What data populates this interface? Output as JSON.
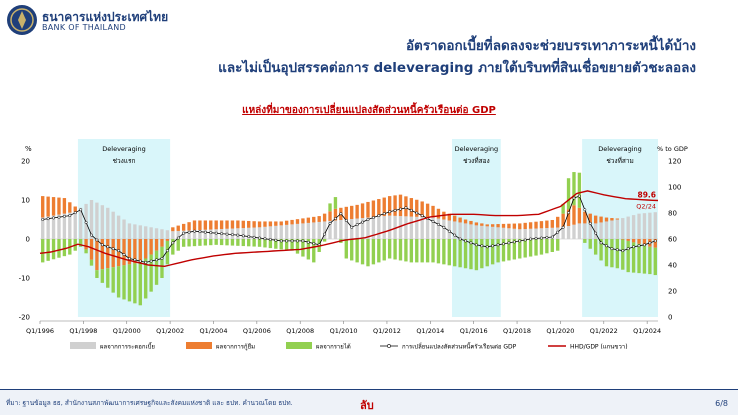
{
  "header": {
    "bank_name_th": "ธนาคารแห่งประเทศไทย",
    "bank_name_en": "BANK OF THAILAND",
    "title_line1": "อัตราดอกเบี้ยที่ลดลงจะช่วยบรรเทาภาระหนี้ได้บ้าง",
    "title_line2": "และไม่เป็นอุปสรรคต่อการ deleveraging ภายใต้บริบทที่สินเชื่อขยายตัวชะลอลง"
  },
  "chart_data": {
    "type": "bar",
    "title": "แหล่งที่มาของการเปลี่ยนแปลงสัดส่วนหนี้ครัวเรือนต่อ GDP",
    "ylabel_left": "%",
    "ylabel_right": "% to GDP",
    "ylim_left": [
      -20,
      20
    ],
    "ylim_right": [
      0,
      120
    ],
    "left_ticks": [
      "20",
      "10",
      "0",
      "-10",
      "-20"
    ],
    "right_ticks": [
      "120",
      "100",
      "80",
      "60",
      "40",
      "20",
      "0"
    ],
    "x_tick_labels": [
      "Q1/1996",
      "Q1/1998",
      "Q1/2000",
      "Q1/2002",
      "Q1/2004",
      "Q1/2006",
      "Q1/2008",
      "Q1/2010",
      "Q1/2012",
      "Q1/2014",
      "Q1/2016",
      "Q1/2018",
      "Q1/2020",
      "Q1/2022",
      "Q1/2024"
    ],
    "x_range": [
      1996.0,
      2024.5
    ],
    "shaded_periods": [
      {
        "start": 1997.75,
        "end": 2002.0,
        "label_line1": "Deleveraging",
        "label_line2": "ช่วงแรก"
      },
      {
        "start": 2015.0,
        "end": 2017.25,
        "label_line1": "Deleveraging",
        "label_line2": "ช่วงที่สอง"
      },
      {
        "start": 2021.0,
        "end": 2024.5,
        "label_line1": "Deleveraging",
        "label_line2": "ช่วงที่สาม"
      }
    ],
    "series_names": {
      "interest": "ผลจากการระดอกเบี้ย",
      "borrowing": "ผลจากการกู้ยืม",
      "income": "ผลจากรายได้",
      "change": "การเปลี่ยนแปลงสัดส่วนหนี้ครัวเรือนต่อ GDP",
      "hhd": "HHD/GDP (แกนขวา)"
    },
    "colors": {
      "interest": "#d0d0d0",
      "borrowing": "#ed7d31",
      "income": "#92d050",
      "change": "#000000",
      "hhd": "#c00000",
      "shade": "#d9f6fa"
    },
    "annotations": {
      "hhd_last": "89.6",
      "hhd_last_period": "Q2/24"
    },
    "interest_points": [
      [
        1996.0,
        5.5
      ],
      [
        1997.5,
        7
      ],
      [
        1998.25,
        10
      ],
      [
        1999.0,
        8
      ],
      [
        2000.0,
        4
      ],
      [
        2001.0,
        3
      ],
      [
        2002.0,
        2
      ],
      [
        2004.0,
        2.5
      ],
      [
        2006.0,
        3
      ],
      [
        2008.0,
        4
      ],
      [
        2010.0,
        5
      ],
      [
        2012.0,
        6
      ],
      [
        2014.0,
        5.5
      ],
      [
        2016.0,
        3.5
      ],
      [
        2018.0,
        2.5
      ],
      [
        2020.0,
        3
      ],
      [
        2020.75,
        4
      ],
      [
        2021.5,
        4
      ],
      [
        2022.5,
        5
      ],
      [
        2023.5,
        6.5
      ],
      [
        2024.5,
        7
      ]
    ],
    "borrowing_points": [
      [
        1996.0,
        5.5
      ],
      [
        1997.0,
        4
      ],
      [
        1997.75,
        0
      ],
      [
        1998.5,
        -8
      ],
      [
        1999.5,
        -7
      ],
      [
        2000.5,
        -6
      ],
      [
        2001.5,
        -2
      ],
      [
        2002.0,
        1
      ],
      [
        2003.0,
        2.5
      ],
      [
        2005.0,
        2
      ],
      [
        2007.0,
        1
      ],
      [
        2008.75,
        1.5
      ],
      [
        2009.5,
        3
      ],
      [
        2010.5,
        3.5
      ],
      [
        2011.5,
        4.5
      ],
      [
        2012.5,
        5.5
      ],
      [
        2013.5,
        4
      ],
      [
        2014.5,
        2
      ],
      [
        2015.5,
        1
      ],
      [
        2016.5,
        0.5
      ],
      [
        2018.0,
        1.5
      ],
      [
        2019.5,
        2
      ],
      [
        2020.5,
        5
      ],
      [
        2021.0,
        3
      ],
      [
        2022.0,
        1
      ],
      [
        2023.0,
        -0.5
      ],
      [
        2024.0,
        -2
      ],
      [
        2024.5,
        -2.5
      ]
    ],
    "income_points": [
      [
        1996.0,
        -6
      ],
      [
        1997.25,
        -4
      ],
      [
        1998.0,
        -1
      ],
      [
        1998.5,
        -2
      ],
      [
        1999.5,
        -8
      ],
      [
        2000.5,
        -11
      ],
      [
        2001.5,
        -8
      ],
      [
        2002.0,
        -4
      ],
      [
        2002.5,
        -2
      ],
      [
        2004.0,
        -1.5
      ],
      [
        2006.0,
        -2
      ],
      [
        2007.5,
        -3
      ],
      [
        2008.5,
        -6
      ],
      [
        2009.25,
        2
      ],
      [
        2009.5,
        3
      ],
      [
        2010.0,
        -5
      ],
      [
        2011.0,
        -7
      ],
      [
        2012.0,
        -5
      ],
      [
        2013.0,
        -6
      ],
      [
        2014.0,
        -6
      ],
      [
        2015.0,
        -7
      ],
      [
        2016.0,
        -8
      ],
      [
        2017.0,
        -6
      ],
      [
        2018.0,
        -5
      ],
      [
        2019.0,
        -4
      ],
      [
        2019.75,
        -3
      ],
      [
        2020.25,
        8
      ],
      [
        2020.75,
        9
      ],
      [
        2021.0,
        -1
      ],
      [
        2022.0,
        -7
      ],
      [
        2023.0,
        -8
      ],
      [
        2024.0,
        -7
      ],
      [
        2024.5,
        -7
      ]
    ],
    "change_points": [
      [
        1996.0,
        5
      ],
      [
        1997.25,
        6
      ],
      [
        1997.75,
        7.5
      ],
      [
        1998.25,
        1
      ],
      [
        1998.75,
        -1.5
      ],
      [
        1999.5,
        -3
      ],
      [
        2000.0,
        -5
      ],
      [
        2000.75,
        -6
      ],
      [
        2001.5,
        -5
      ],
      [
        2002.0,
        -1
      ],
      [
        2002.5,
        1.5
      ],
      [
        2003.0,
        2
      ],
      [
        2005.0,
        1
      ],
      [
        2007.0,
        -0.5
      ],
      [
        2008.0,
        -0.5
      ],
      [
        2008.75,
        -1.5
      ],
      [
        2009.25,
        4
      ],
      [
        2009.75,
        6.5
      ],
      [
        2010.25,
        3
      ],
      [
        2011.0,
        5
      ],
      [
        2012.0,
        7
      ],
      [
        2012.75,
        8
      ],
      [
        2013.5,
        6
      ],
      [
        2014.5,
        3
      ],
      [
        2015.25,
        0
      ],
      [
        2016.0,
        -1.5
      ],
      [
        2016.5,
        -2
      ],
      [
        2017.5,
        -1
      ],
      [
        2018.5,
        0
      ],
      [
        2019.5,
        0.5
      ],
      [
        2020.0,
        3
      ],
      [
        2020.5,
        10.5
      ],
      [
        2020.75,
        11
      ],
      [
        2021.25,
        4
      ],
      [
        2021.75,
        -1
      ],
      [
        2022.25,
        -2.5
      ],
      [
        2022.75,
        -3
      ],
      [
        2023.25,
        -2
      ],
      [
        2023.75,
        -1.5
      ],
      [
        2024.25,
        -0.5
      ],
      [
        2024.5,
        -1.5
      ]
    ],
    "hhd_points": [
      [
        1996.0,
        49
      ],
      [
        1996.5,
        50
      ],
      [
        1997.25,
        53
      ],
      [
        1997.75,
        56
      ],
      [
        1998.25,
        54
      ],
      [
        1999.0,
        49
      ],
      [
        2000.0,
        44
      ],
      [
        2001.0,
        40
      ],
      [
        2001.75,
        39
      ],
      [
        2002.0,
        40
      ],
      [
        2003.0,
        44
      ],
      [
        2004.0,
        47
      ],
      [
        2005.0,
        49
      ],
      [
        2006.0,
        50
      ],
      [
        2007.0,
        51
      ],
      [
        2008.0,
        52
      ],
      [
        2009.0,
        55
      ],
      [
        2010.0,
        59
      ],
      [
        2011.0,
        61
      ],
      [
        2012.0,
        66
      ],
      [
        2013.0,
        72
      ],
      [
        2014.0,
        77
      ],
      [
        2015.0,
        79
      ],
      [
        2016.0,
        79
      ],
      [
        2017.0,
        78
      ],
      [
        2018.0,
        78
      ],
      [
        2019.0,
        79
      ],
      [
        2020.0,
        85
      ],
      [
        2020.75,
        95
      ],
      [
        2021.25,
        97
      ],
      [
        2022.0,
        94
      ],
      [
        2023.0,
        91
      ],
      [
        2024.0,
        90
      ],
      [
        2024.5,
        89.6
      ]
    ]
  },
  "footer": {
    "source": "ที่มา: ฐานข้อมูล ธธ, สำนักงานสภาพัฒนาการเศรษฐกิจและสังคมแห่งชาติ และ ธปท. คำนวณโดย ธปท.",
    "classification": "ลับ",
    "page": "6/8"
  }
}
